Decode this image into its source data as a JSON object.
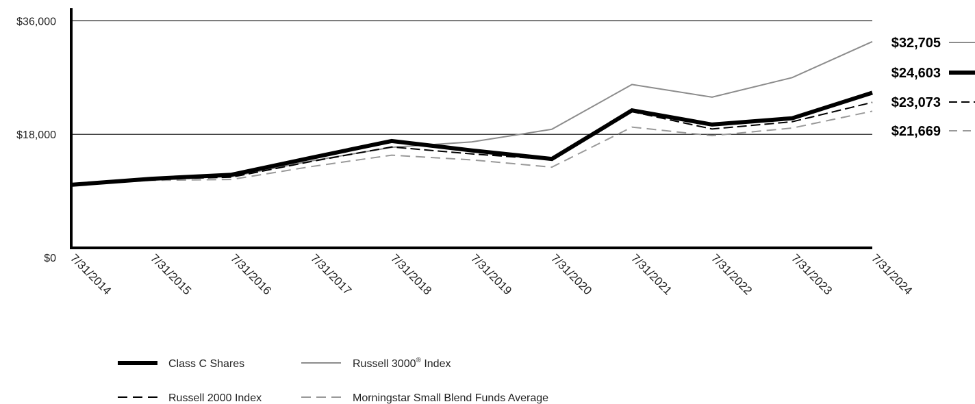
{
  "chart_data": {
    "type": "line",
    "x": [
      "7/31/2014",
      "7/31/2015",
      "7/31/2016",
      "7/31/2017",
      "7/31/2018",
      "7/31/2019",
      "7/31/2020",
      "7/31/2021",
      "7/31/2022",
      "7/31/2023",
      "7/31/2024"
    ],
    "ylim": [
      0,
      38000
    ],
    "yticks": [
      {
        "value": 0,
        "label": "$0"
      },
      {
        "value": 18000,
        "label": "$18,000"
      },
      {
        "value": 36000,
        "label": "$36,000"
      }
    ],
    "grid": true,
    "legend_position": "bottom",
    "series": [
      {
        "name": "Class C Shares",
        "style": "solid-thick",
        "color": "#000000",
        "values": [
          10000,
          10950,
          11600,
          14300,
          16950,
          15450,
          14100,
          21800,
          19550,
          20550,
          24603
        ],
        "end_label": "$24,603"
      },
      {
        "name": "Russell 3000",
        "superscript": "®",
        "name_suffix": " Index",
        "style": "solid-thin",
        "color": "#8c8c8c",
        "values": [
          10000,
          10950,
          11300,
          13800,
          15950,
          16800,
          18800,
          25900,
          23900,
          27000,
          32705
        ],
        "end_label": "$32,705"
      },
      {
        "name": "Russell 2000 Index",
        "style": "dashed-dark",
        "color": "#000000",
        "values": [
          10000,
          10900,
          11200,
          13700,
          16000,
          14900,
          14000,
          21600,
          18850,
          20000,
          23073
        ],
        "end_label": "$23,073"
      },
      {
        "name": "Morningstar Small Blend Funds Average",
        "style": "dashed-light",
        "color": "#999999",
        "values": [
          10000,
          10700,
          10850,
          12900,
          14700,
          13950,
          12800,
          19150,
          17800,
          19000,
          21669
        ],
        "end_label": "$21,669"
      }
    ]
  }
}
